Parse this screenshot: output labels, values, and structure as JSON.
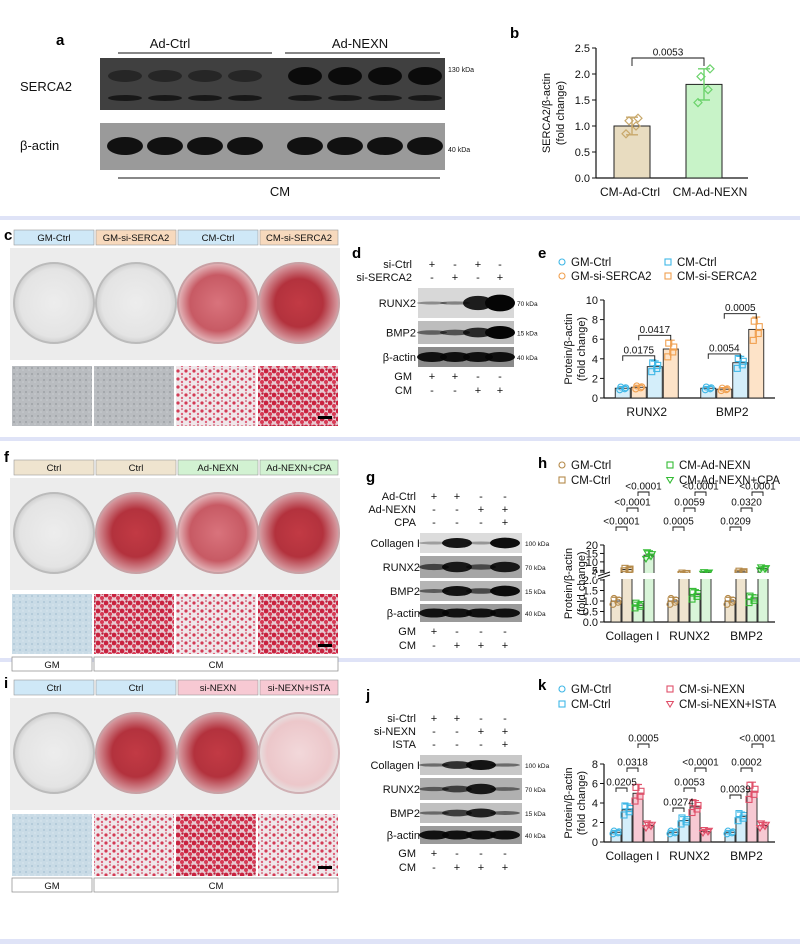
{
  "panels": {
    "a": {
      "label": "a",
      "group_left": "Ad-Ctrl",
      "group_right": "Ad-NEXN",
      "bottom": "CM",
      "rows": [
        "SERCA2",
        "β-actin"
      ],
      "markers": [
        "130 kDa",
        "40 kDa"
      ]
    },
    "b": {
      "label": "b",
      "pvalue": "0.0053"
    },
    "c": {
      "label": "c",
      "headers": [
        "GM-Ctrl",
        "GM-si-SERCA2",
        "CM-Ctrl",
        "CM-si-SERCA2"
      ]
    },
    "d": {
      "label": "d",
      "treat_rows": [
        {
          "name": "si-Ctrl",
          "signs": [
            "+",
            "-",
            "+",
            "-"
          ]
        },
        {
          "name": "si-SERCA2",
          "signs": [
            "-",
            "+",
            "-",
            "+"
          ]
        }
      ],
      "rows": [
        "RUNX2",
        "BMP2",
        "β-actin"
      ],
      "markers": [
        "70 kDa",
        "15 kDa",
        "40 kDa"
      ],
      "bottom_rows": [
        {
          "name": "GM",
          "signs": [
            "+",
            "+",
            "-",
            "-"
          ]
        },
        {
          "name": "CM",
          "signs": [
            "-",
            "-",
            "+",
            "+"
          ]
        }
      ]
    },
    "e": {
      "label": "e",
      "pvalues": [
        "0.0417",
        "0.0175",
        "0.0005",
        "0.0054"
      ]
    },
    "f": {
      "label": "f",
      "headers": [
        "Ctrl",
        "Ctrl",
        "Ad-NEXN",
        "Ad-NEXN+CPA"
      ],
      "footer": [
        "GM",
        "CM"
      ]
    },
    "g": {
      "label": "g",
      "treat_rows": [
        {
          "name": "Ad-Ctrl",
          "signs": [
            "+",
            "+",
            "-",
            "-"
          ]
        },
        {
          "name": "Ad-NEXN",
          "signs": [
            "-",
            "-",
            "+",
            "+"
          ]
        },
        {
          "name": "CPA",
          "signs": [
            "-",
            "-",
            "-",
            "+"
          ]
        }
      ],
      "rows": [
        "Collagen I",
        "RUNX2",
        "BMP2",
        "β-actin"
      ],
      "markers": [
        "100 kDa",
        "70 kDa",
        "15 kDa",
        "40 kDa"
      ],
      "bottom_rows": [
        {
          "name": "GM",
          "signs": [
            "+",
            "-",
            "-",
            "-"
          ]
        },
        {
          "name": "CM",
          "signs": [
            "-",
            "+",
            "+",
            "+"
          ]
        }
      ]
    },
    "h": {
      "label": "h",
      "pvalues": [
        "<0.0001",
        "<0.0001",
        "<0.0001",
        "<0.0001",
        "0.0005",
        "0.0059",
        "<0.0001",
        "0.0209",
        "0.0320",
        "<0.0001"
      ]
    },
    "i": {
      "label": "i",
      "headers": [
        "Ctrl",
        "Ctrl",
        "si-NEXN",
        "si-NEXN+ISTA"
      ],
      "footer": [
        "GM",
        "CM"
      ]
    },
    "j": {
      "label": "j",
      "treat_rows": [
        {
          "name": "si-Ctrl",
          "signs": [
            "+",
            "+",
            "-",
            "-"
          ]
        },
        {
          "name": "si-NEXN",
          "signs": [
            "-",
            "-",
            "+",
            "+"
          ]
        },
        {
          "name": "ISTA",
          "signs": [
            "-",
            "-",
            "-",
            "+"
          ]
        }
      ],
      "rows": [
        "Collagen I",
        "RUNX2",
        "BMP2",
        "β-actin"
      ],
      "markers": [
        "100 kDa",
        "70 kDa",
        "15 kDa",
        "40 kDa"
      ],
      "bottom_rows": [
        {
          "name": "GM",
          "signs": [
            "+",
            "-",
            "-",
            "-"
          ]
        },
        {
          "name": "CM",
          "signs": [
            "-",
            "+",
            "+",
            "+"
          ]
        }
      ]
    },
    "k": {
      "label": "k",
      "pvalues": [
        "0.0205",
        "0.0318",
        "0.0005",
        "0.0274",
        "0.0053",
        "<0.0001",
        "0.0039",
        "0.0002",
        "<0.0001"
      ]
    }
  },
  "chart_data": [
    {
      "type": "bar",
      "panel": "b",
      "ylabel": "SERCA2/β-actin (fold change)",
      "categories": [
        "CM-Ad-Ctrl",
        "CM-Ad-NEXN"
      ],
      "values": [
        1.0,
        1.8
      ],
      "errors": [
        0.17,
        0.3
      ],
      "points": [
        [
          0.85,
          1.0,
          1.1,
          1.15
        ],
        [
          1.45,
          1.7,
          1.95,
          2.1
        ]
      ],
      "ylim": [
        0,
        2.5
      ],
      "yticks": [
        0,
        0.5,
        1.0,
        1.5,
        2.0,
        2.5
      ],
      "colors": [
        "#c8a86b",
        "#6dd36d"
      ],
      "fills": [
        "#e8dcc0",
        "#c8f3c8"
      ]
    },
    {
      "type": "bar",
      "panel": "e",
      "ylabel": "Protein/β-actin (fold change)",
      "categories": [
        "RUNX2",
        "BMP2"
      ],
      "series": [
        {
          "name": "GM-Ctrl",
          "values": [
            1.0,
            1.0
          ],
          "marker": "circle"
        },
        {
          "name": "GM-si-SERCA2",
          "values": [
            1.1,
            0.9
          ],
          "marker": "circle"
        },
        {
          "name": "CM-Ctrl",
          "values": [
            3.2,
            3.6
          ],
          "marker": "square"
        },
        {
          "name": "CM-si-SERCA2",
          "values": [
            5.0,
            7.0
          ],
          "marker": "square"
        }
      ],
      "ylim": [
        0,
        10
      ],
      "yticks": [
        0,
        2,
        4,
        6,
        8,
        10
      ],
      "colors": [
        "#3fb7e6",
        "#f0a050",
        "#3fb7e6",
        "#f0a050"
      ],
      "fills": [
        "#d4eefa",
        "#fde3c8",
        "#d4eefa",
        "#fde3c8"
      ]
    },
    {
      "type": "bar",
      "panel": "h",
      "ylabel": "Protein/β-actin (fold change)",
      "categories": [
        "Collagen I",
        "RUNX2",
        "BMP2"
      ],
      "series": [
        {
          "name": "GM-Ctrl",
          "values": [
            1.0,
            1.0,
            1.0
          ],
          "marker": "circle"
        },
        {
          "name": "CM-Ctrl",
          "values": [
            5.5,
            3.0,
            4.0
          ],
          "marker": "square"
        },
        {
          "name": "CM-Ad-NEXN",
          "values": [
            0.8,
            1.3,
            1.1
          ],
          "marker": "square"
        },
        {
          "name": "CM-Ad-NEXN+CPA",
          "values": [
            14,
            3.5,
            6.0
          ],
          "marker": "triangle"
        }
      ],
      "yticks_lower": [
        0,
        0.5,
        1.0,
        1.5,
        2.0
      ],
      "yticks_upper": [
        4,
        5,
        10,
        15,
        20
      ],
      "colors": [
        "#b58a4a",
        "#b58a4a",
        "#33bb33",
        "#33bb33"
      ],
      "fills": [
        "#efe4cf",
        "#efe4cf",
        "#d9f5d9",
        "#d9f5d9"
      ]
    },
    {
      "type": "bar",
      "panel": "k",
      "ylabel": "Protein/β-actin (fold change)",
      "categories": [
        "Collagen I",
        "RUNX2",
        "BMP2"
      ],
      "series": [
        {
          "name": "GM-Ctrl",
          "values": [
            1.0,
            1.0,
            1.0
          ],
          "marker": "circle"
        },
        {
          "name": "CM-Ctrl",
          "values": [
            3.3,
            2.2,
            2.6
          ],
          "marker": "square"
        },
        {
          "name": "CM-si-NEXN",
          "values": [
            5.0,
            3.6,
            5.2
          ],
          "marker": "square"
        },
        {
          "name": "CM-si-NEXN+ISTA",
          "values": [
            1.7,
            1.1,
            1.7
          ],
          "marker": "triangle"
        }
      ],
      "ylim": [
        0,
        8
      ],
      "yticks": [
        0,
        2,
        4,
        6,
        8
      ],
      "colors": [
        "#3fb7e6",
        "#3fb7e6",
        "#e0506a",
        "#e0506a"
      ],
      "fills": [
        "#d4eefa",
        "#d4eefa",
        "#f7c9d3",
        "#f7c9d3"
      ]
    }
  ],
  "colors": {
    "header_blue": "#cfe8f7",
    "header_orange": "#f7d9bd",
    "header_tan": "#efe4cf",
    "header_green": "#d2f2d2",
    "header_pink": "#f7c9d3",
    "section_band": "#dfe3f7"
  }
}
